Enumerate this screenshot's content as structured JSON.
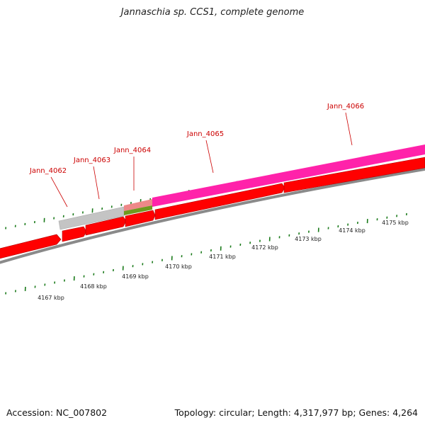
{
  "title": "Jannaschia sp. CCS1, complete genome",
  "footer": {
    "accession": "Accession: NC_007802",
    "summary": "Topology: circular; Length: 4,317,977 bp; Genes: 4,264"
  },
  "colors": {
    "tick": "#1a7a1a",
    "backbone": "#8a8a8a",
    "label": "#cc0000",
    "cds": "#ff0000",
    "magenta": "#ff22aa",
    "gray": "#c4c4c4",
    "pink": "#ee8888",
    "olive": "#6f9a1e"
  },
  "gene_labels": [
    "Jann_4062",
    "Jann_4063",
    "Jann_4064",
    "Jann_4065",
    "Jann_4066"
  ],
  "kbp_labels": [
    "4167 kbp",
    "4168 kbp",
    "4169 kbp",
    "4170 kbp",
    "4171 kbp",
    "4172 kbp",
    "4173 kbp",
    "4174 kbp",
    "4175 kbp"
  ]
}
